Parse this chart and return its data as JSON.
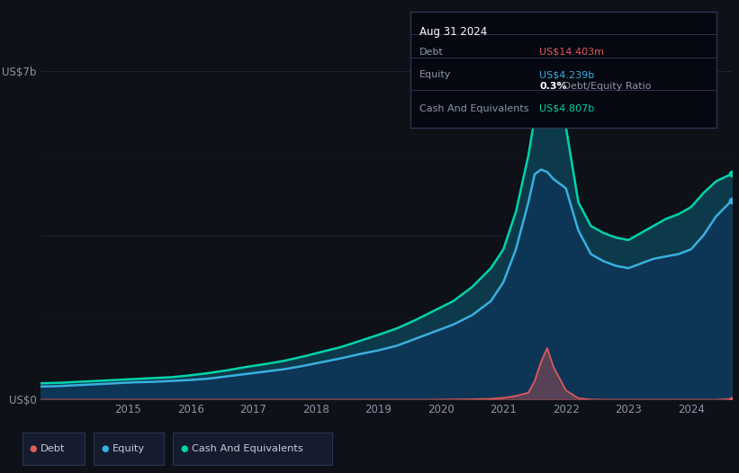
{
  "bg_color": "#0e1117",
  "plot_bg_color": "#0e1117",
  "grid_color": "#1e2a3a",
  "text_color": "#8a95a8",
  "debt_color": "#e05a5a",
  "equity_color": "#38b0e0",
  "cash_color": "#00d4aa",
  "fill_color": "#0d3040",
  "ylim_max": 7000000000,
  "years": [
    2013.6,
    2013.9,
    2014.2,
    2014.5,
    2014.8,
    2015.1,
    2015.4,
    2015.7,
    2016.0,
    2016.3,
    2016.6,
    2016.9,
    2017.2,
    2017.5,
    2017.8,
    2018.1,
    2018.4,
    2018.7,
    2019.0,
    2019.3,
    2019.6,
    2019.9,
    2020.2,
    2020.5,
    2020.8,
    2021.0,
    2021.2,
    2021.4,
    2021.5,
    2021.6,
    2021.7,
    2021.8,
    2022.0,
    2022.2,
    2022.4,
    2022.6,
    2022.8,
    2023.0,
    2023.2,
    2023.4,
    2023.6,
    2023.8,
    2024.0,
    2024.2,
    2024.4,
    2024.65
  ],
  "equity": [
    280000000.0,
    290000000.0,
    310000000.0,
    330000000.0,
    350000000.0,
    370000000.0,
    380000000.0,
    400000000.0,
    420000000.0,
    450000000.0,
    500000000.0,
    550000000.0,
    600000000.0,
    650000000.0,
    720000000.0,
    800000000.0,
    880000000.0,
    970000000.0,
    1050000000.0,
    1150000000.0,
    1300000000.0,
    1450000000.0,
    1600000000.0,
    1800000000.0,
    2100000000.0,
    2500000000.0,
    3200000000.0,
    4200000000.0,
    4800000000.0,
    4900000000.0,
    4850000000.0,
    4700000000.0,
    4500000000.0,
    3600000000.0,
    3100000000.0,
    2950000000.0,
    2850000000.0,
    2800000000.0,
    2900000000.0,
    3000000000.0,
    3050000000.0,
    3100000000.0,
    3200000000.0,
    3500000000.0,
    3900000000.0,
    4239000000.0
  ],
  "cash": [
    350000000.0,
    360000000.0,
    380000000.0,
    400000000.0,
    420000000.0,
    440000000.0,
    460000000.0,
    480000000.0,
    520000000.0,
    570000000.0,
    630000000.0,
    700000000.0,
    760000000.0,
    830000000.0,
    920000000.0,
    1020000000.0,
    1120000000.0,
    1250000000.0,
    1380000000.0,
    1520000000.0,
    1700000000.0,
    1900000000.0,
    2100000000.0,
    2400000000.0,
    2800000000.0,
    3200000000.0,
    4000000000.0,
    5200000000.0,
    6000000000.0,
    6400000000.0,
    6500000000.0,
    6450000000.0,
    5800000000.0,
    4200000000.0,
    3700000000.0,
    3550000000.0,
    3450000000.0,
    3400000000.0,
    3550000000.0,
    3700000000.0,
    3850000000.0,
    3950000000.0,
    4100000000.0,
    4400000000.0,
    4650000000.0,
    4807000000.0
  ],
  "debt": [
    1000000.0,
    1000000.0,
    1000000.0,
    1000000.0,
    1000000.0,
    1000000.0,
    1000000.0,
    1000000.0,
    1000000.0,
    1000000.0,
    1000000.0,
    1000000.0,
    1000000.0,
    1000000.0,
    1000000.0,
    1000000.0,
    1000000.0,
    1000000.0,
    1000000.0,
    1000000.0,
    1000000.0,
    2000000.0,
    5000000.0,
    10000000.0,
    20000000.0,
    40000000.0,
    80000000.0,
    150000000.0,
    400000000.0,
    800000000.0,
    1100000000.0,
    700000000.0,
    200000000.0,
    30000000.0,
    5000000.0,
    2000000.0,
    1000000.0,
    1000000.0,
    1000000.0,
    1000000.0,
    1000000.0,
    1000000.0,
    1000000.0,
    1000000.0,
    1000000.0,
    14400000.0
  ],
  "xticks": [
    2015,
    2016,
    2017,
    2018,
    2019,
    2020,
    2021,
    2022,
    2023,
    2024
  ],
  "tooltip": {
    "date": "Aug 31 2024",
    "debt_label": "Debt",
    "debt_value": "US$14.403m",
    "equity_label": "Equity",
    "equity_value": "US$4.239b",
    "ratio_bold": "0.3%",
    "ratio_text": " Debt/Equity Ratio",
    "cash_label": "Cash And Equivalents",
    "cash_value": "US$4.807b",
    "debt_value_color": "#e05a5a",
    "equity_value_color": "#38b0e0",
    "ratio_bold_color": "#ffffff",
    "ratio_text_color": "#8a95a8",
    "cash_value_color": "#00d4aa",
    "box_bg": "#050810",
    "box_border": "#2a3550",
    "label_color": "#8a95a8",
    "date_color": "#ffffff"
  },
  "legend_items": [
    {
      "label": "Debt",
      "color": "#e05a5a"
    },
    {
      "label": "Equity",
      "color": "#38b0e0"
    },
    {
      "label": "Cash And Equivalents",
      "color": "#00d4aa"
    }
  ],
  "legend_bg": "#151c2e",
  "legend_border": "#2a3550"
}
